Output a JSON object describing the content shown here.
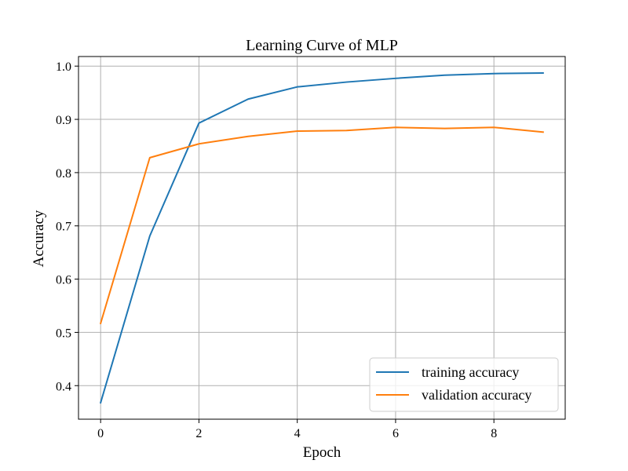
{
  "chart_data": {
    "type": "line",
    "title": "Learning Curve of MLP",
    "xlabel": "Epoch",
    "ylabel": "Accuracy",
    "xlim": [
      -0.45,
      9.45
    ],
    "ylim": [
      0.337,
      1.018
    ],
    "grid": true,
    "legend_position": "bottom-right",
    "x_ticks": [
      0,
      2,
      4,
      6,
      8
    ],
    "x_tick_labels": [
      "0",
      "2",
      "4",
      "6",
      "8"
    ],
    "y_ticks": [
      0.4,
      0.5,
      0.6,
      0.7,
      0.8,
      0.9,
      1.0
    ],
    "y_tick_labels": [
      "0.4",
      "0.5",
      "0.6",
      "0.7",
      "0.8",
      "0.9",
      "1.0"
    ],
    "x": [
      0,
      1,
      2,
      3,
      4,
      5,
      6,
      7,
      8,
      9
    ],
    "series": [
      {
        "name": "training accuracy",
        "color": "#1f77b4",
        "values": [
          0.368,
          0.681,
          0.893,
          0.938,
          0.961,
          0.97,
          0.977,
          0.983,
          0.986,
          0.987
        ]
      },
      {
        "name": "validation accuracy",
        "color": "#ff7f0e",
        "values": [
          0.517,
          0.828,
          0.854,
          0.868,
          0.878,
          0.879,
          0.885,
          0.883,
          0.885,
          0.876
        ]
      }
    ]
  }
}
